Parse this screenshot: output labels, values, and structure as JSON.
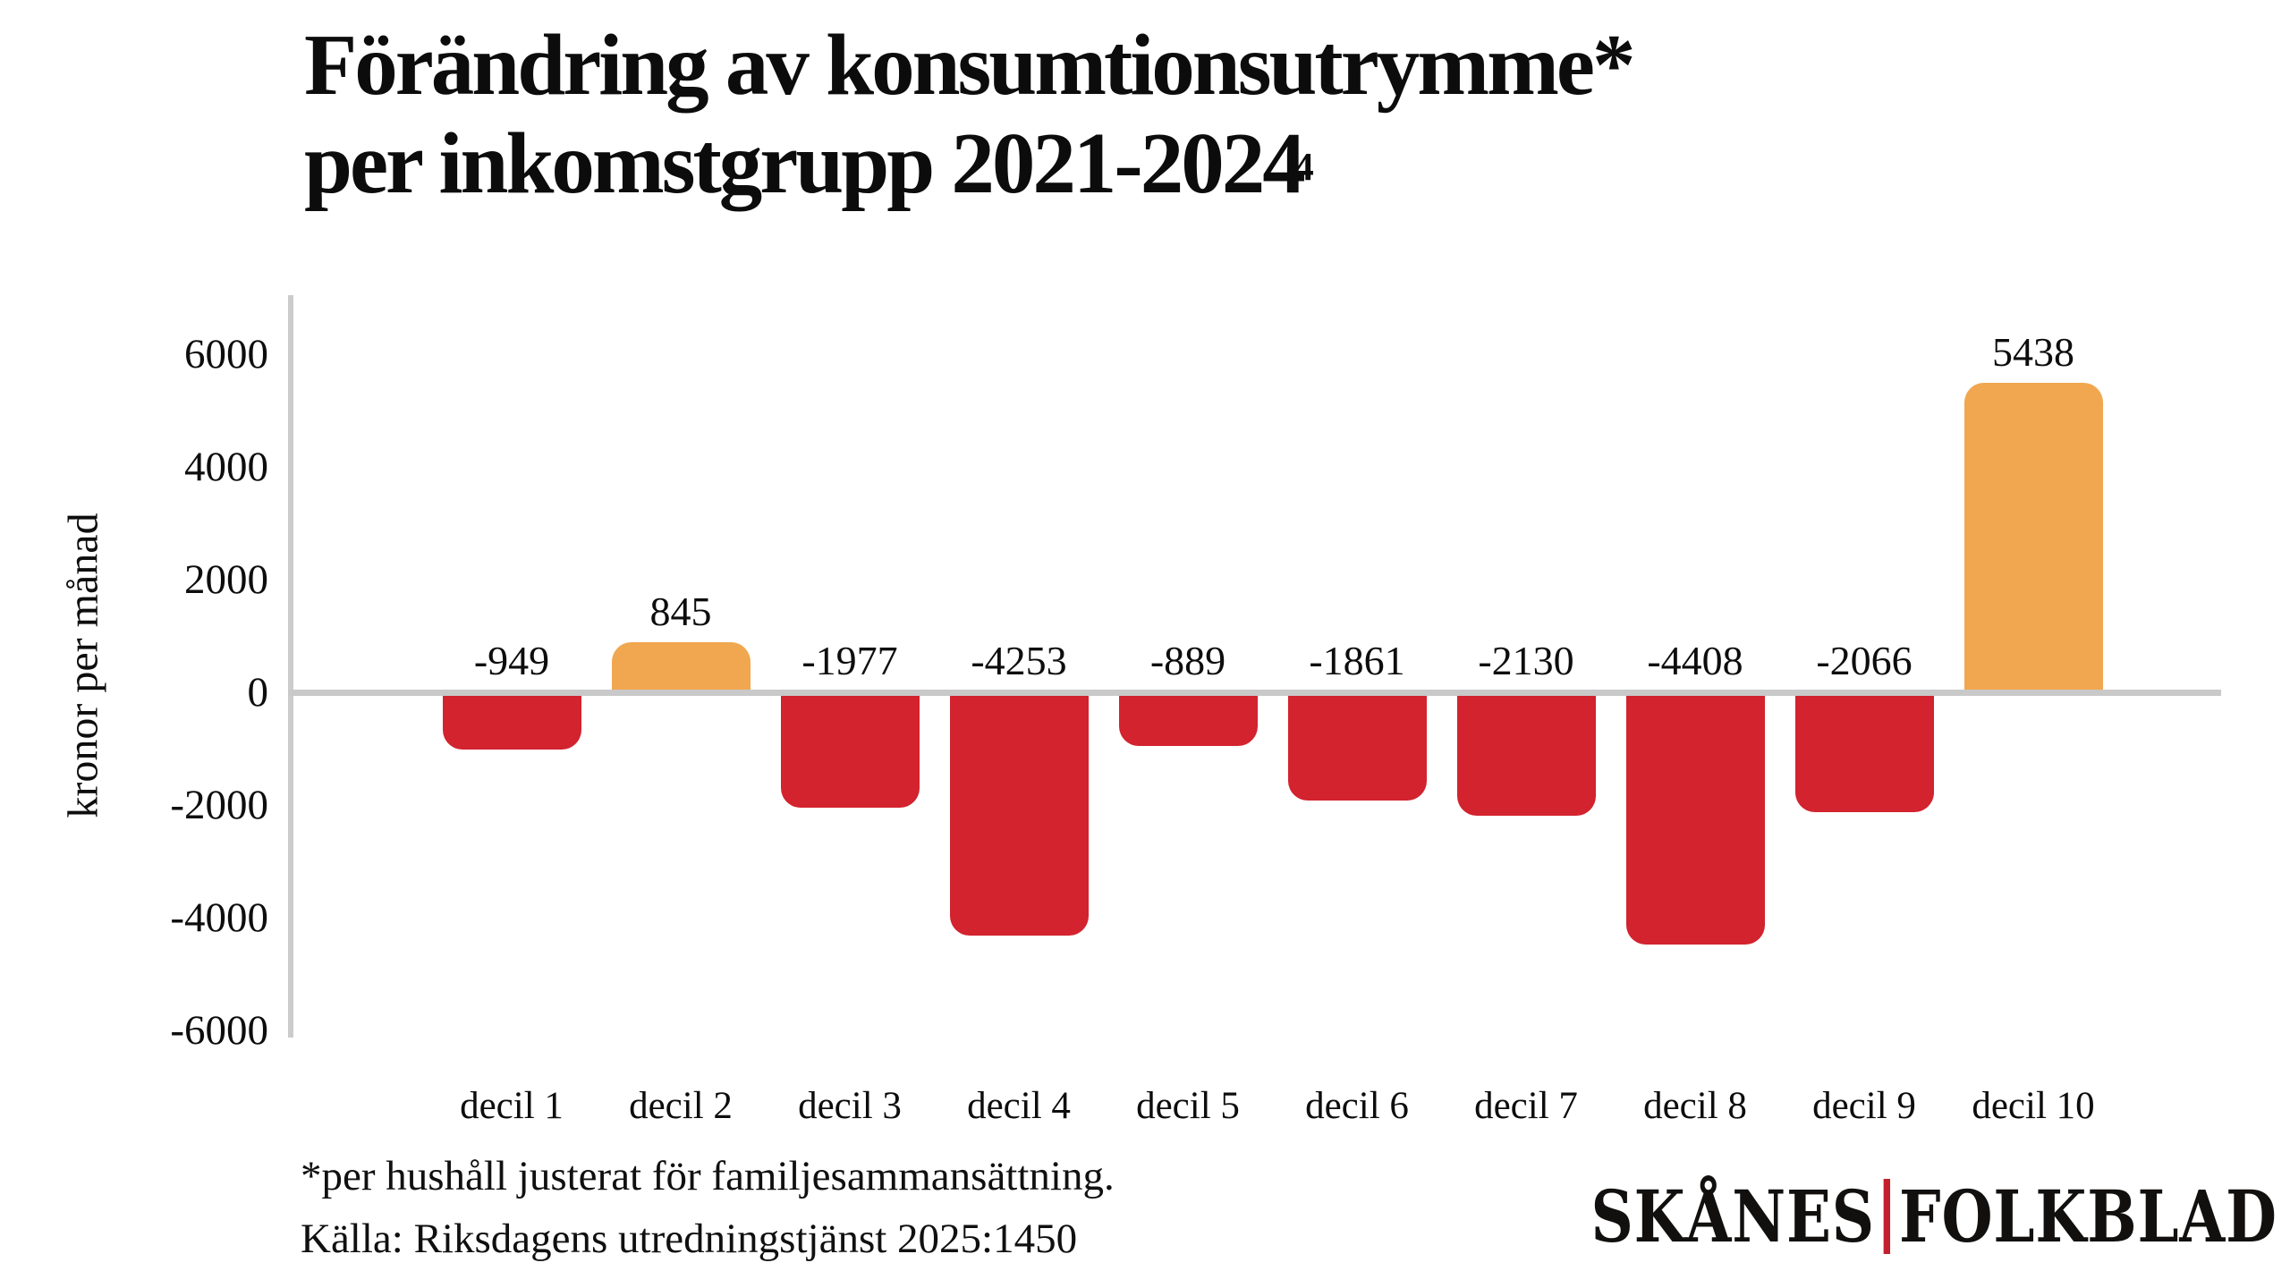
{
  "title": {
    "line1": "Förändring av konsumtionsutrymme*",
    "line2": "per inkomstgrupp 2021-2024",
    "line2_artifact": "4"
  },
  "chart_data": {
    "type": "bar",
    "title": "Förändring av konsumtionsutrymme* per inkomstgrupp 2021-2024",
    "categories": [
      "decil 1",
      "decil 2",
      "decil 3",
      "decil 4",
      "decil 5",
      "decil 6",
      "decil 7",
      "decil 8",
      "decil 9",
      "decil 10"
    ],
    "values": [
      -949,
      845,
      -1977,
      -4253,
      -889,
      -1861,
      -2130,
      -4408,
      -2066,
      5438
    ],
    "xlabel": "",
    "ylabel": "kronor per månad",
    "yticks": [
      6000,
      4000,
      2000,
      0,
      -2000,
      -4000,
      -6000
    ],
    "ylim": [
      -6000,
      6000
    ],
    "grid": false,
    "legend_position": "none",
    "colors": {
      "negative_bar": "#d2232f",
      "positive_bar": "#f0a74f",
      "axis_line": "#c9c9c9",
      "text": "#0d0d0d"
    }
  },
  "footnotes": {
    "asterisk": "*per hushåll justerat för familjesammansättning.",
    "source": "Källa: Riksdagens utredningstjänst 2025:1450"
  },
  "logo": {
    "part1": "SKÅNES",
    "part2": "FOLKBLAD",
    "divider_color": "#c41f2d"
  }
}
